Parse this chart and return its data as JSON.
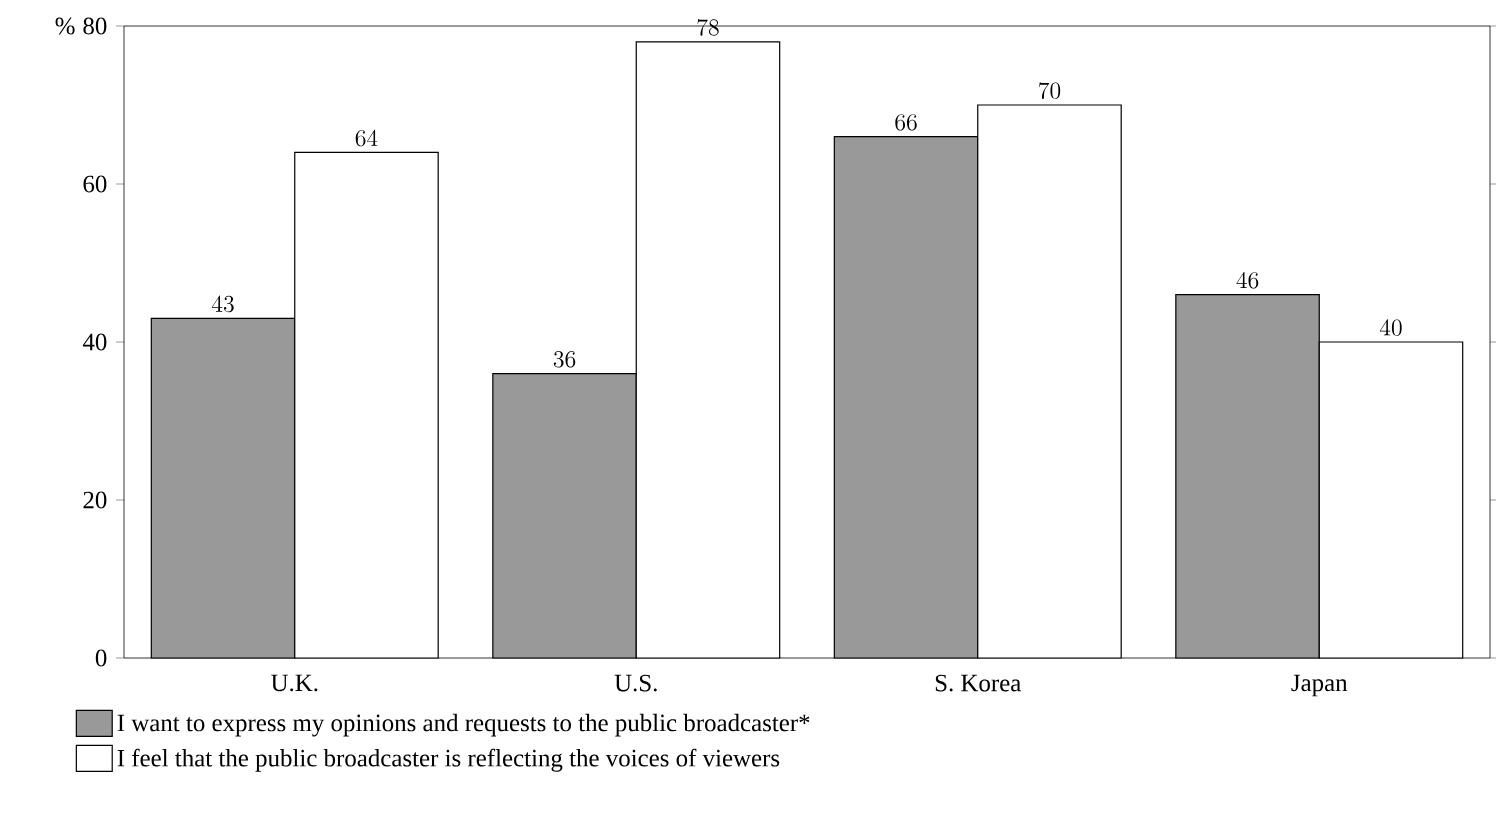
{
  "chart_data": {
    "type": "bar",
    "ylabel": "%",
    "categories": [
      "U.K.",
      "U.S.",
      "S. Korea",
      "Japan"
    ],
    "series": [
      {
        "name": "I want to express my opinions and requests to the public broadcaster*",
        "color": "#999999",
        "values": [
          43,
          36,
          66,
          46
        ]
      },
      {
        "name": "I feel that the public broadcaster is reflecting the voices of viewers",
        "color": "#ffffff",
        "values": [
          64,
          78,
          70,
          40
        ]
      }
    ],
    "ylim": [
      0,
      80
    ],
    "yticks": [
      0,
      20,
      40,
      60,
      80
    ],
    "data_labels": true,
    "legend": "bottom",
    "grid": false
  }
}
